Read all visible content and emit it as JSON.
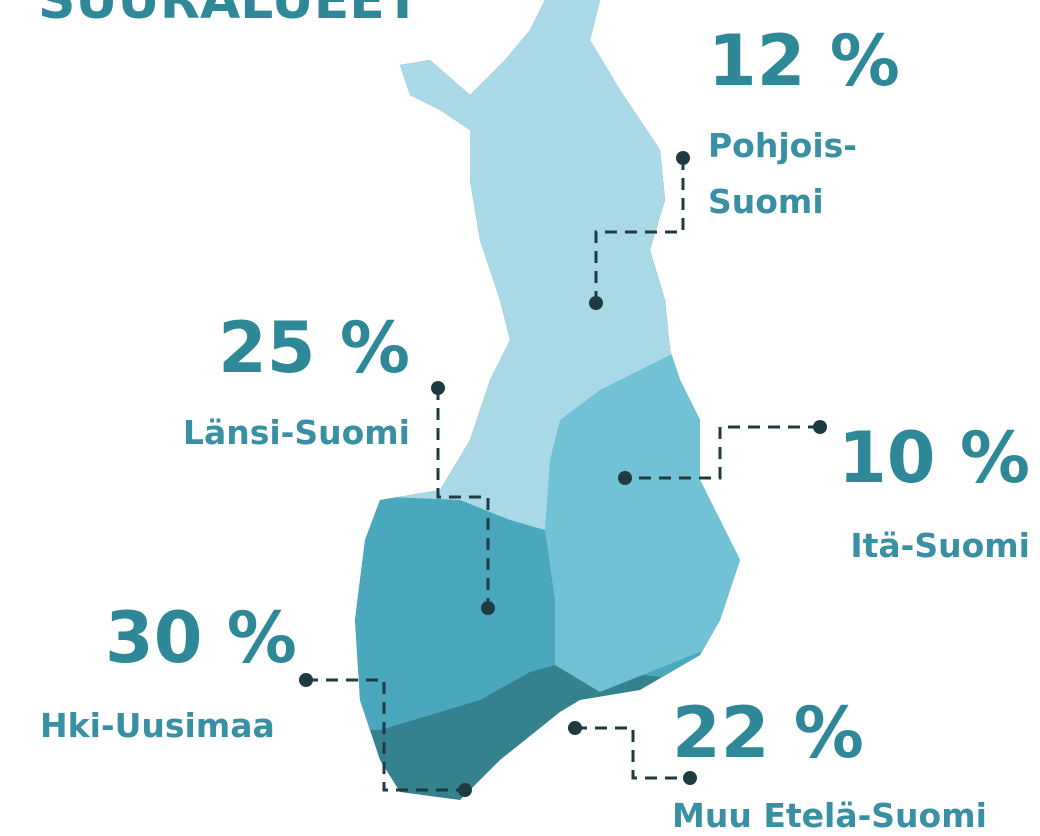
{
  "header": {
    "title": "SUURALUEET"
  },
  "regions": [
    {
      "value": "12 %",
      "name": [
        "Pohjois-",
        "Suomi"
      ]
    },
    {
      "value": "25 %",
      "name": [
        "Länsi-Suomi"
      ]
    },
    {
      "value": "10 %",
      "name": [
        "Itä-Suomi"
      ]
    },
    {
      "value": "30 %",
      "name": [
        "Hki-Uusimaa"
      ]
    },
    {
      "value": "22 %",
      "name": [
        "Muu Etelä-Suomi"
      ]
    }
  ]
}
